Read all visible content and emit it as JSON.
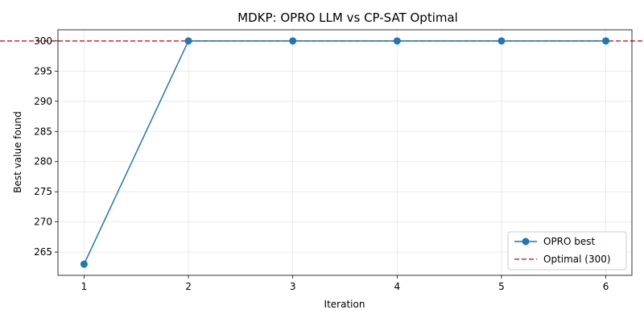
{
  "chart_data": {
    "type": "line",
    "title": "MDKP: OPRO LLM vs CP-SAT Optimal",
    "xlabel": "Iteration",
    "ylabel": "Best value found",
    "x": [
      1,
      2,
      3,
      4,
      5,
      6
    ],
    "xlim": [
      0.75,
      6.25
    ],
    "ylim": [
      261.15,
      301.85
    ],
    "xticks": [
      1,
      2,
      3,
      4,
      5,
      6
    ],
    "yticks": [
      265,
      270,
      275,
      280,
      285,
      290,
      295,
      300
    ],
    "grid": true,
    "legend_position": "bottom-right",
    "series": [
      {
        "name": "OPRO best",
        "values": [
          263,
          300,
          300,
          300,
          300,
          300
        ],
        "color": "#1f77b4",
        "style": "solid",
        "marker": "circle"
      }
    ],
    "reference_lines": [
      {
        "name": "Optimal (300)",
        "y": 300,
        "color": "#d62728",
        "style": "dashed"
      }
    ]
  }
}
